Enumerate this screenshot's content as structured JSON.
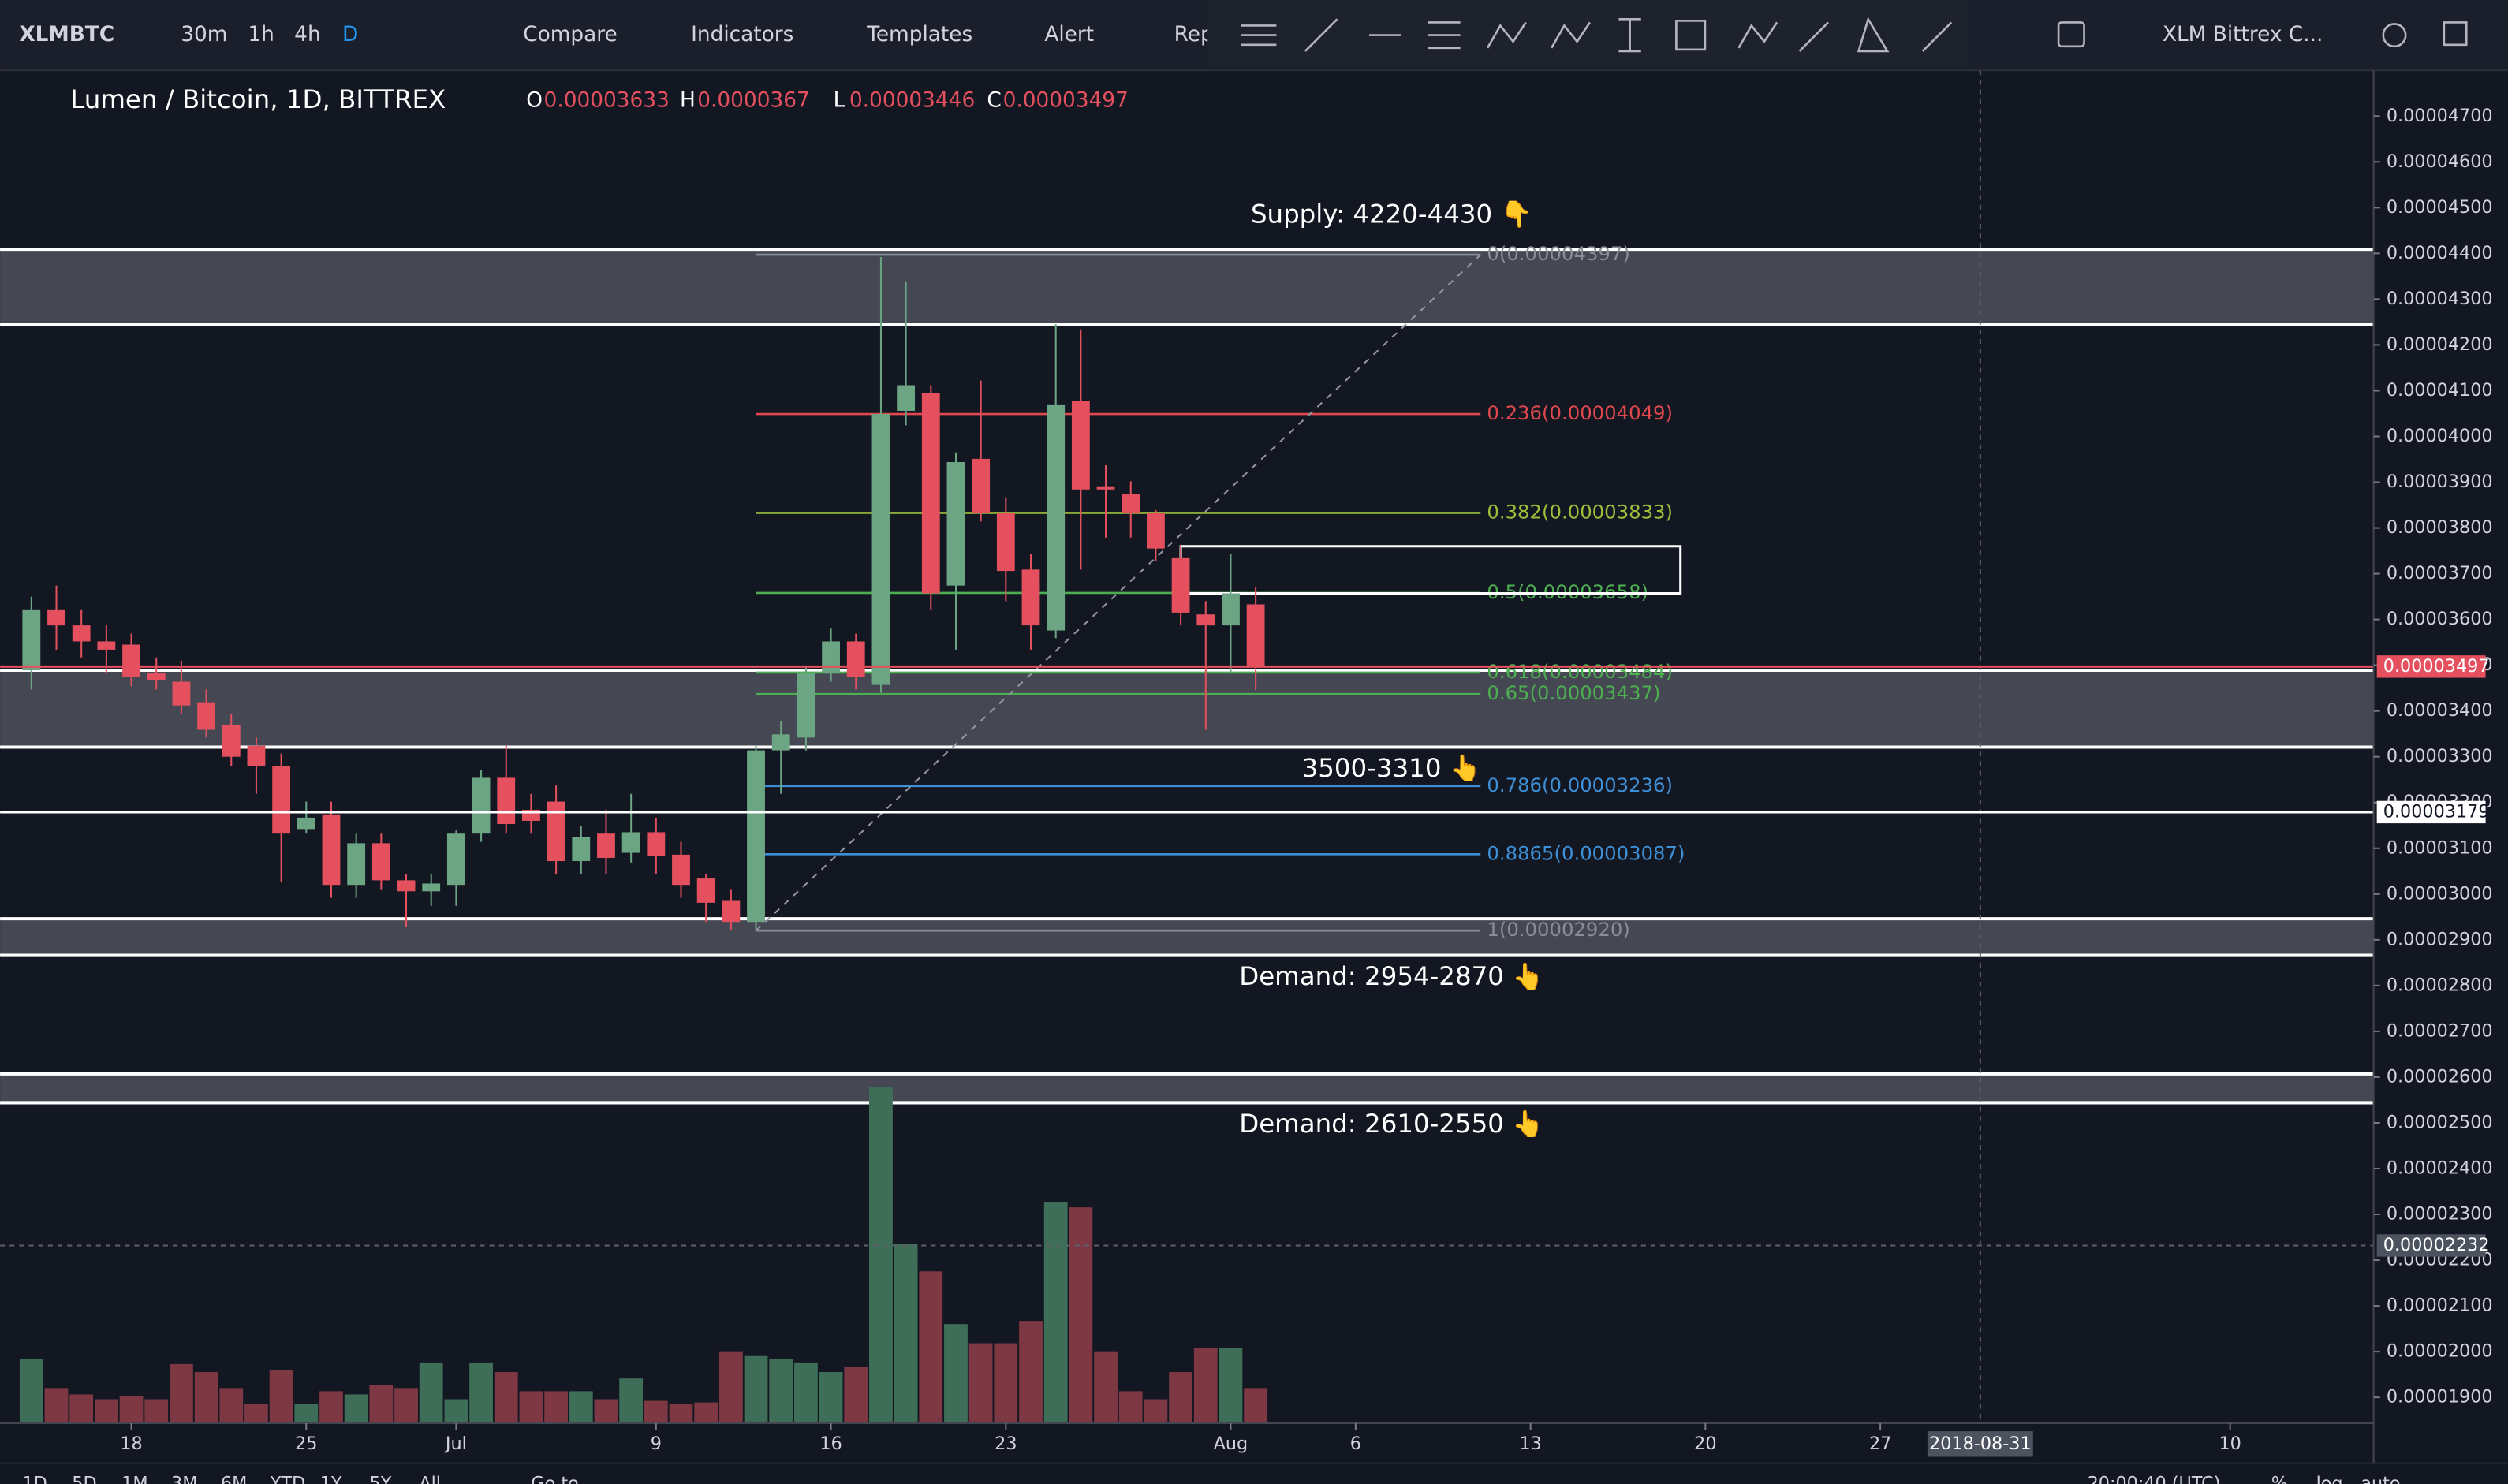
{
  "toolbar": {
    "symbol": "XLMBTC",
    "intervals": [
      "30m",
      "1h",
      "4h",
      "D"
    ],
    "buttons": [
      "Compare",
      "Indicators",
      "Templates",
      "Alert",
      "Rep"
    ],
    "layout_name": "XLM Bittrex C..."
  },
  "legend": {
    "title": "Lumen / Bitcoin, 1D, BITTREX",
    "o": "O",
    "h": "H",
    "l": "L",
    "c": "C"
  },
  "bottom_bar": {
    "ranges": [
      "1D",
      "5D",
      "1M",
      "3M",
      "6M",
      "YTD",
      "1Y",
      "5Y",
      "All"
    ],
    "goto": "Go to...",
    "time": "20:00:40 (UTC)",
    "options": [
      "%",
      "log",
      "auto"
    ]
  },
  "chart_data": {
    "type": "candlestick",
    "x": [
      "2018-06-14",
      "2018-06-15",
      "2018-06-16",
      "2018-06-17",
      "2018-06-18",
      "2018-06-19",
      "2018-06-20",
      "2018-06-21",
      "2018-06-22",
      "2018-06-23",
      "2018-06-24",
      "2018-06-25",
      "2018-06-26",
      "2018-06-27",
      "2018-06-28",
      "2018-06-29",
      "2018-06-30",
      "2018-07-01",
      "2018-07-02",
      "2018-07-03",
      "2018-07-04",
      "2018-07-05",
      "2018-07-06",
      "2018-07-07",
      "2018-07-08",
      "2018-07-09",
      "2018-07-10",
      "2018-07-11",
      "2018-07-12",
      "2018-07-13",
      "2018-07-14",
      "2018-07-15",
      "2018-07-16",
      "2018-07-17",
      "2018-07-18",
      "2018-07-19",
      "2018-07-20",
      "2018-07-21",
      "2018-07-22",
      "2018-07-23",
      "2018-07-24",
      "2018-07-25",
      "2018-07-26",
      "2018-07-27",
      "2018-07-28",
      "2018-07-29",
      "2018-07-30",
      "2018-07-31",
      "2018-08-01",
      "2018-08-02"
    ],
    "open": [
      3.489e-05,
      3.622e-05,
      3.587e-05,
      3.552e-05,
      3.545e-05,
      3.482e-05,
      3.464e-05,
      3.419e-05,
      3.37e-05,
      3.324e-05,
      3.279e-05,
      3.142e-05,
      3.174e-05,
      3.02e-05,
      3.111e-05,
      3.03e-05,
      3.006e-05,
      3.02e-05,
      3.132e-05,
      3.254e-05,
      3.184e-05,
      3.202e-05,
      3.072e-05,
      3.132e-05,
      3.09e-05,
      3.135e-05,
      3.086e-05,
      3.034e-05,
      2.985e-05,
      2.939e-05,
      3.314e-05,
      3.342e-05,
      3.482e-05,
      3.552e-05,
      3.457e-05,
      4.056e-05,
      4.094e-05,
      3.674e-05,
      3.951e-05,
      3.832e-05,
      3.709e-05,
      3.576e-05,
      4.077e-05,
      3.891e-05,
      3.874e-05,
      3.832e-05,
      3.734e-05,
      3.611e-05,
      3.587e-05,
      3.633e-05
    ],
    "high": [
      3.65e-05,
      3.674e-05,
      3.622e-05,
      3.587e-05,
      3.569e-05,
      3.517e-05,
      3.51e-05,
      3.447e-05,
      3.394e-05,
      3.342e-05,
      3.307e-05,
      3.202e-05,
      3.202e-05,
      3.132e-05,
      3.132e-05,
      3.044e-05,
      3.044e-05,
      3.139e-05,
      3.272e-05,
      3.324e-05,
      3.219e-05,
      3.237e-05,
      3.149e-05,
      3.184e-05,
      3.219e-05,
      3.167e-05,
      3.114e-05,
      3.044e-05,
      3.009e-05,
      3.324e-05,
      3.377e-05,
      3.499e-05,
      3.58e-05,
      3.569e-05,
      4.392e-05,
      4.339e-05,
      4.112e-05,
      3.965e-05,
      4.122e-05,
      3.867e-05,
      3.744e-05,
      4.245e-05,
      4.234e-05,
      3.937e-05,
      3.902e-05,
      3.839e-05,
      3.762e-05,
      3.64e-05,
      3.744e-05,
      3.67e-05
    ],
    "low": [
      3.447e-05,
      3.534e-05,
      3.517e-05,
      3.482e-05,
      3.454e-05,
      3.447e-05,
      3.394e-05,
      3.342e-05,
      3.279e-05,
      3.219e-05,
      3.027e-05,
      3.132e-05,
      2.992e-05,
      2.992e-05,
      3.009e-05,
      2.929e-05,
      2.974e-05,
      2.974e-05,
      3.114e-05,
      3.132e-05,
      3.132e-05,
      3.044e-05,
      3.044e-05,
      3.044e-05,
      3.069e-05,
      3.044e-05,
      2.992e-05,
      2.939e-05,
      2.922e-05,
      2.922e-05,
      3.219e-05,
      3.314e-05,
      3.464e-05,
      3.447e-05,
      3.44e-05,
      4.024e-05,
      3.622e-05,
      3.534e-05,
      3.814e-05,
      3.64e-05,
      3.534e-05,
      3.559e-05,
      3.709e-05,
      3.779e-05,
      3.779e-05,
      3.727e-05,
      3.587e-05,
      3.359e-05,
      3.482e-05,
      3.446e-05
    ],
    "close": [
      3.622e-05,
      3.587e-05,
      3.552e-05,
      3.534e-05,
      3.475e-05,
      3.468e-05,
      3.412e-05,
      3.359e-05,
      3.3e-05,
      3.279e-05,
      3.132e-05,
      3.167e-05,
      3.02e-05,
      3.111e-05,
      3.03e-05,
      3.006e-05,
      3.023e-05,
      3.132e-05,
      3.254e-05,
      3.153e-05,
      3.16e-05,
      3.072e-05,
      3.125e-05,
      3.079e-05,
      3.135e-05,
      3.083e-05,
      3.02e-05,
      2.981e-05,
      2.939e-05,
      3.314e-05,
      3.349e-05,
      3.482e-05,
      3.552e-05,
      3.475e-05,
      4.049e-05,
      4.112e-05,
      3.657e-05,
      3.944e-05,
      3.832e-05,
      3.706e-05,
      3.587e-05,
      4.07e-05,
      3.884e-05,
      3.884e-05,
      3.832e-05,
      3.755e-05,
      3.615e-05,
      3.587e-05,
      3.657e-05,
      3.497e-05
    ],
    "volume": [
      40,
      22,
      18,
      15,
      17,
      15,
      37,
      32,
      22,
      12,
      33,
      12,
      20,
      18,
      24,
      22,
      38,
      15,
      38,
      32,
      20,
      20,
      20,
      15,
      28,
      14,
      12,
      13,
      45,
      42,
      40,
      38,
      32,
      35,
      210,
      112,
      95,
      62,
      50,
      50,
      64,
      138,
      135,
      45,
      20,
      15,
      32,
      47,
      47,
      22
    ],
    "volume_ylim": [
      0,
      220
    ],
    "up_color": "#6ba583",
    "down_color": "#e5505e",
    "volume_up_color": "#3f6e58",
    "volume_down_color": "#7d3843",
    "ylim": [
      1.84e-05,
      4.8e-05
    ],
    "yticks": [
      {
        "value": 4.7e-05,
        "label": "0.00004700"
      },
      {
        "value": 4.6e-05,
        "label": "0.00004600"
      },
      {
        "value": 4.5e-05,
        "label": "0.00004500"
      },
      {
        "value": 4.4e-05,
        "label": "0.00004400"
      },
      {
        "value": 4.3e-05,
        "label": "0.00004300"
      },
      {
        "value": 4.2e-05,
        "label": "0.00004200"
      },
      {
        "value": 4.1e-05,
        "label": "0.00004100"
      },
      {
        "value": 4e-05,
        "label": "0.00004000"
      },
      {
        "value": 3.9e-05,
        "label": "0.00003900"
      },
      {
        "value": 3.8e-05,
        "label": "0.00003800"
      },
      {
        "value": 3.7e-05,
        "label": "0.00003700"
      },
      {
        "value": 3.6e-05,
        "label": "0.00003600"
      },
      {
        "value": 3.5e-05,
        "label": "0.00003500"
      },
      {
        "value": 3.4e-05,
        "label": "0.00003400"
      },
      {
        "value": 3.3e-05,
        "label": "0.00003300"
      },
      {
        "value": 3.2e-05,
        "label": "0.00003200"
      },
      {
        "value": 3.1e-05,
        "label": "0.00003100"
      },
      {
        "value": 3e-05,
        "label": "0.00003000"
      },
      {
        "value": 2.9e-05,
        "label": "0.00002900"
      },
      {
        "value": 2.8e-05,
        "label": "0.00002800"
      },
      {
        "value": 2.7e-05,
        "label": "0.00002700"
      },
      {
        "value": 2.6e-05,
        "label": "0.00002600"
      },
      {
        "value": 2.5e-05,
        "label": "0.00002500"
      },
      {
        "value": 2.4e-05,
        "label": "0.00002400"
      },
      {
        "value": 2.3e-05,
        "label": "0.00002300"
      },
      {
        "value": 2.2e-05,
        "label": "0.00002200"
      },
      {
        "value": 2.1e-05,
        "label": "0.00002100"
      },
      {
        "value": 2e-05,
        "label": "0.00002000"
      },
      {
        "value": 1.9e-05,
        "label": "0.00001900"
      }
    ],
    "xlim": [
      "2018-06-13",
      "2018-09-16"
    ],
    "xticks": [
      {
        "value": "2018-06-18",
        "label": "18"
      },
      {
        "value": "2018-06-25",
        "label": "25"
      },
      {
        "value": "2018-07-01",
        "label": "Jul"
      },
      {
        "value": "2018-07-09",
        "label": "9"
      },
      {
        "value": "2018-07-16",
        "label": "16"
      },
      {
        "value": "2018-07-23",
        "label": "23"
      },
      {
        "value": "2018-08-01",
        "label": "Aug"
      },
      {
        "value": "2018-08-06",
        "label": "6"
      },
      {
        "value": "2018-08-13",
        "label": "13"
      },
      {
        "value": "2018-08-20",
        "label": "20"
      },
      {
        "value": "2018-08-27",
        "label": "27"
      },
      {
        "value": "2018-09-10",
        "label": "10"
      }
    ],
    "grid": false,
    "zones": [
      {
        "label": "Supply: 4220-4430 👇",
        "top": 4.409e-05,
        "bottom": 4.245e-05
      },
      {
        "label": "3500-3310 👆",
        "top": 3.489e-05,
        "bottom": 3.321e-05
      },
      {
        "label": "Demand: 2954-2870 👆",
        "top": 2.946e-05,
        "bottom": 2.866e-05
      },
      {
        "label": "Demand: 2610-2550 👆",
        "top": 2.607e-05,
        "bottom": 2.544e-05
      }
    ],
    "fib_range": [
      "2018-07-13",
      "2018-08-11"
    ],
    "fib": [
      {
        "label": "0(0.00004397)",
        "value": 4.397e-05,
        "color": "#8a8d96"
      },
      {
        "label": "0.236(0.00004049)",
        "value": 4.049e-05,
        "color": "#e0484d"
      },
      {
        "label": "0.382(0.00003833)",
        "value": 3.833e-05,
        "color": "#9cbf3b"
      },
      {
        "label": "0.5(0.00003658)",
        "value": 3.658e-05,
        "color": "#4caf50"
      },
      {
        "label": "0.618(0.00003484)",
        "value": 3.484e-05,
        "color": "#4caf50"
      },
      {
        "label": "0.65(0.00003437)",
        "value": 3.437e-05,
        "color": "#4caf50"
      },
      {
        "label": "0.786(0.00003236)",
        "value": 3.236e-05,
        "color": "#3d8fd6"
      },
      {
        "label": "0.8865(0.00003087)",
        "value": 3.087e-05,
        "color": "#3d8fd6"
      },
      {
        "label": "1(0.00002920)",
        "value": 2.92e-05,
        "color": "#8a8d96"
      }
    ],
    "trendline": {
      "x": [
        "2018-07-13",
        "2018-08-11"
      ],
      "y": [
        2.92e-05,
        4.397e-05
      ]
    },
    "rectangle": {
      "x": [
        "2018-07-30",
        "2018-08-19"
      ],
      "top": 3.76e-05,
      "bottom": 3.657e-05
    },
    "price_tags": [
      {
        "value": 3.497e-05,
        "color": "#e5505e"
      },
      {
        "value": 3.179e-05,
        "color": "#ffffff"
      }
    ],
    "crosshair": {
      "x": "2018-08-31",
      "y": 2.232e-05
    }
  }
}
